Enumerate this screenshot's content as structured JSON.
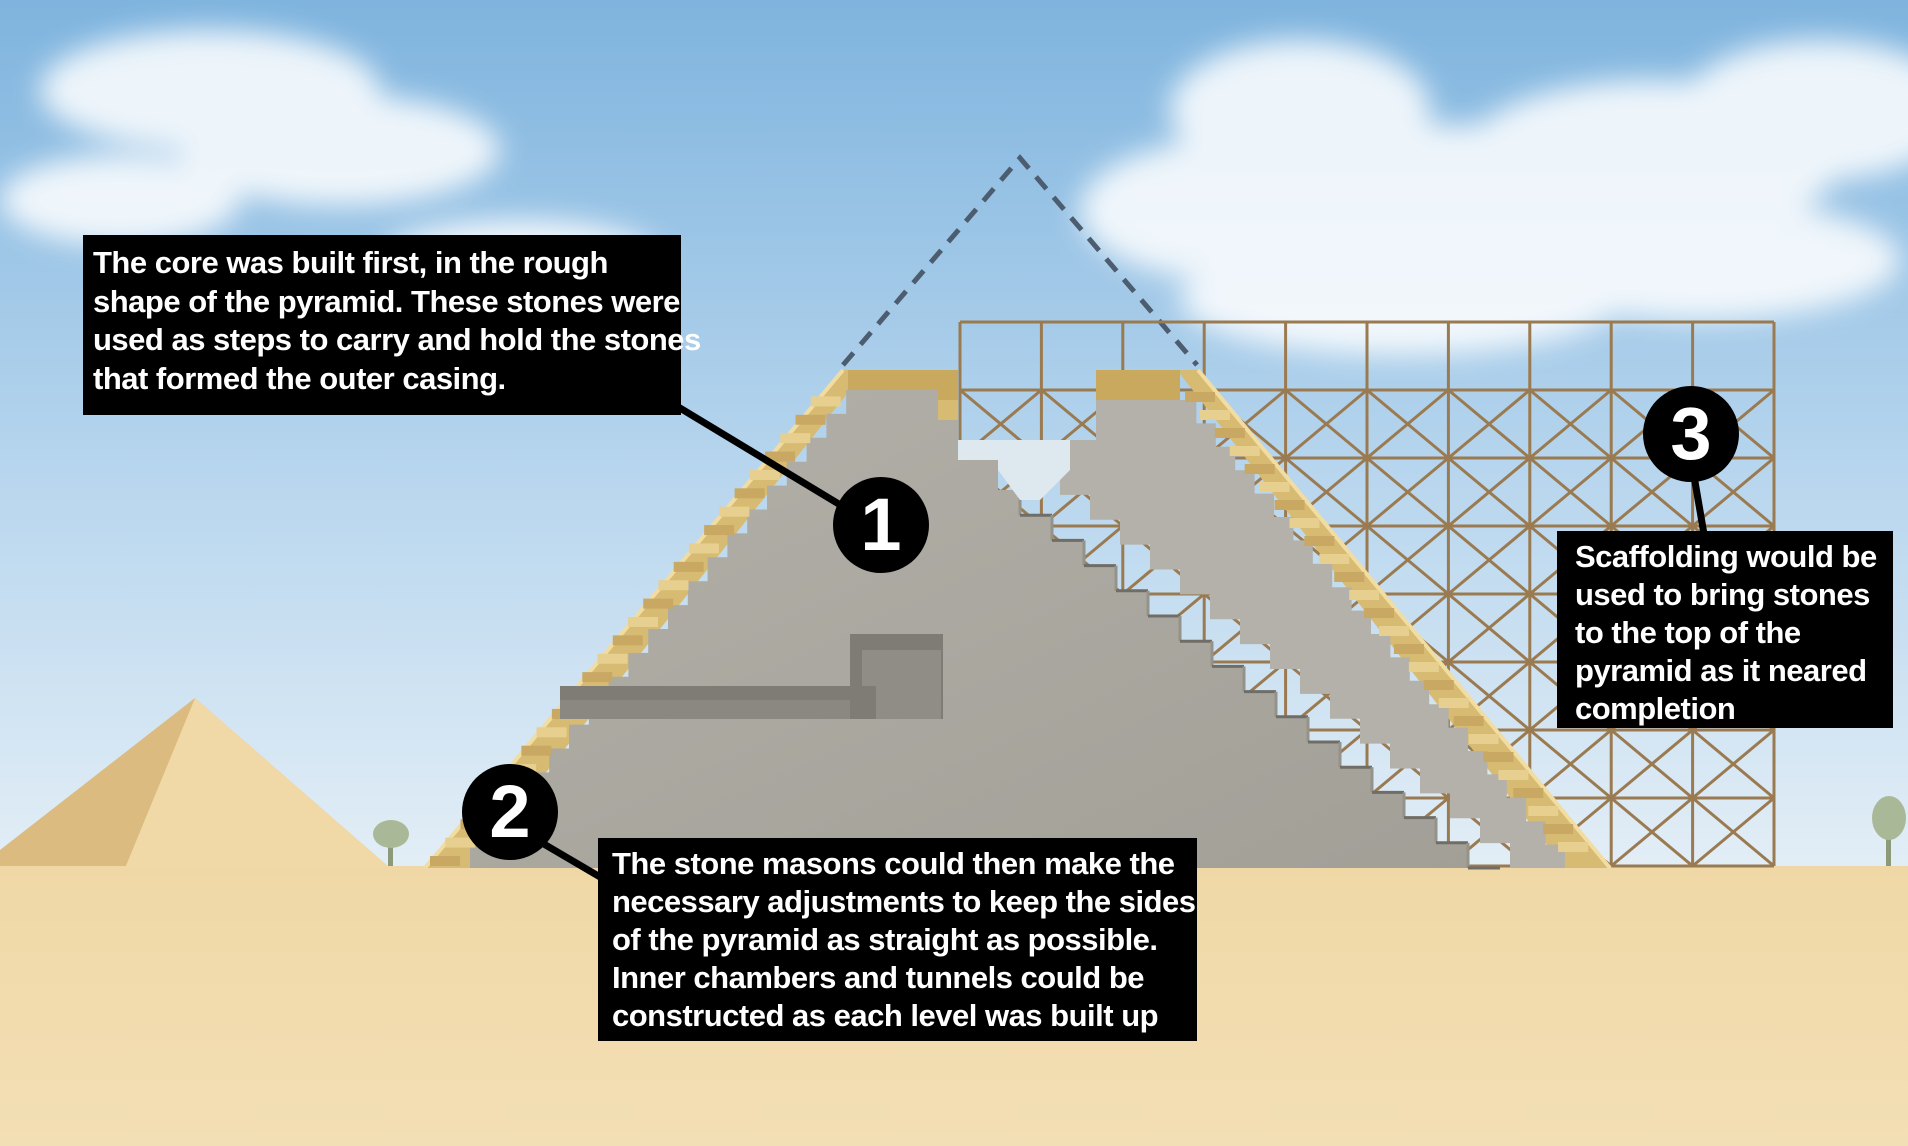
{
  "diagram": {
    "steps": [
      {
        "number": "1",
        "lines": [
          "The core was built first, in the rough",
          "shape of the pyramid.  These stones were",
          "used as steps to carry and hold the stones",
          "that formed the outer casing."
        ]
      },
      {
        "number": "2",
        "lines": [
          "The stone masons could then make the",
          "necessary adjustments  to keep the sides",
          "of the pyramid as straight as possible.",
          "Inner chambers and tunnels could be",
          "constructed as each level was built up"
        ]
      },
      {
        "number": "3",
        "lines": [
          "Scaffolding would be",
          "used to bring stones",
          "to the top of the",
          "pyramid as it neared",
          "completion"
        ]
      }
    ]
  },
  "colors": {
    "sky_top": "#7fb4de",
    "sky_bottom": "#dcebf5",
    "sand": "#f2dcae",
    "sand_dark": "#ead2a0",
    "core_stone": "#a9a79f",
    "core_stone_dark": "#959389",
    "casing": "#d8bb72",
    "casing_light": "#f0dca0",
    "scaffold": "#9a7a50",
    "dashed_outline": "#4c5d70",
    "callout_bg": "#000000",
    "callout_text": "#ffffff"
  }
}
